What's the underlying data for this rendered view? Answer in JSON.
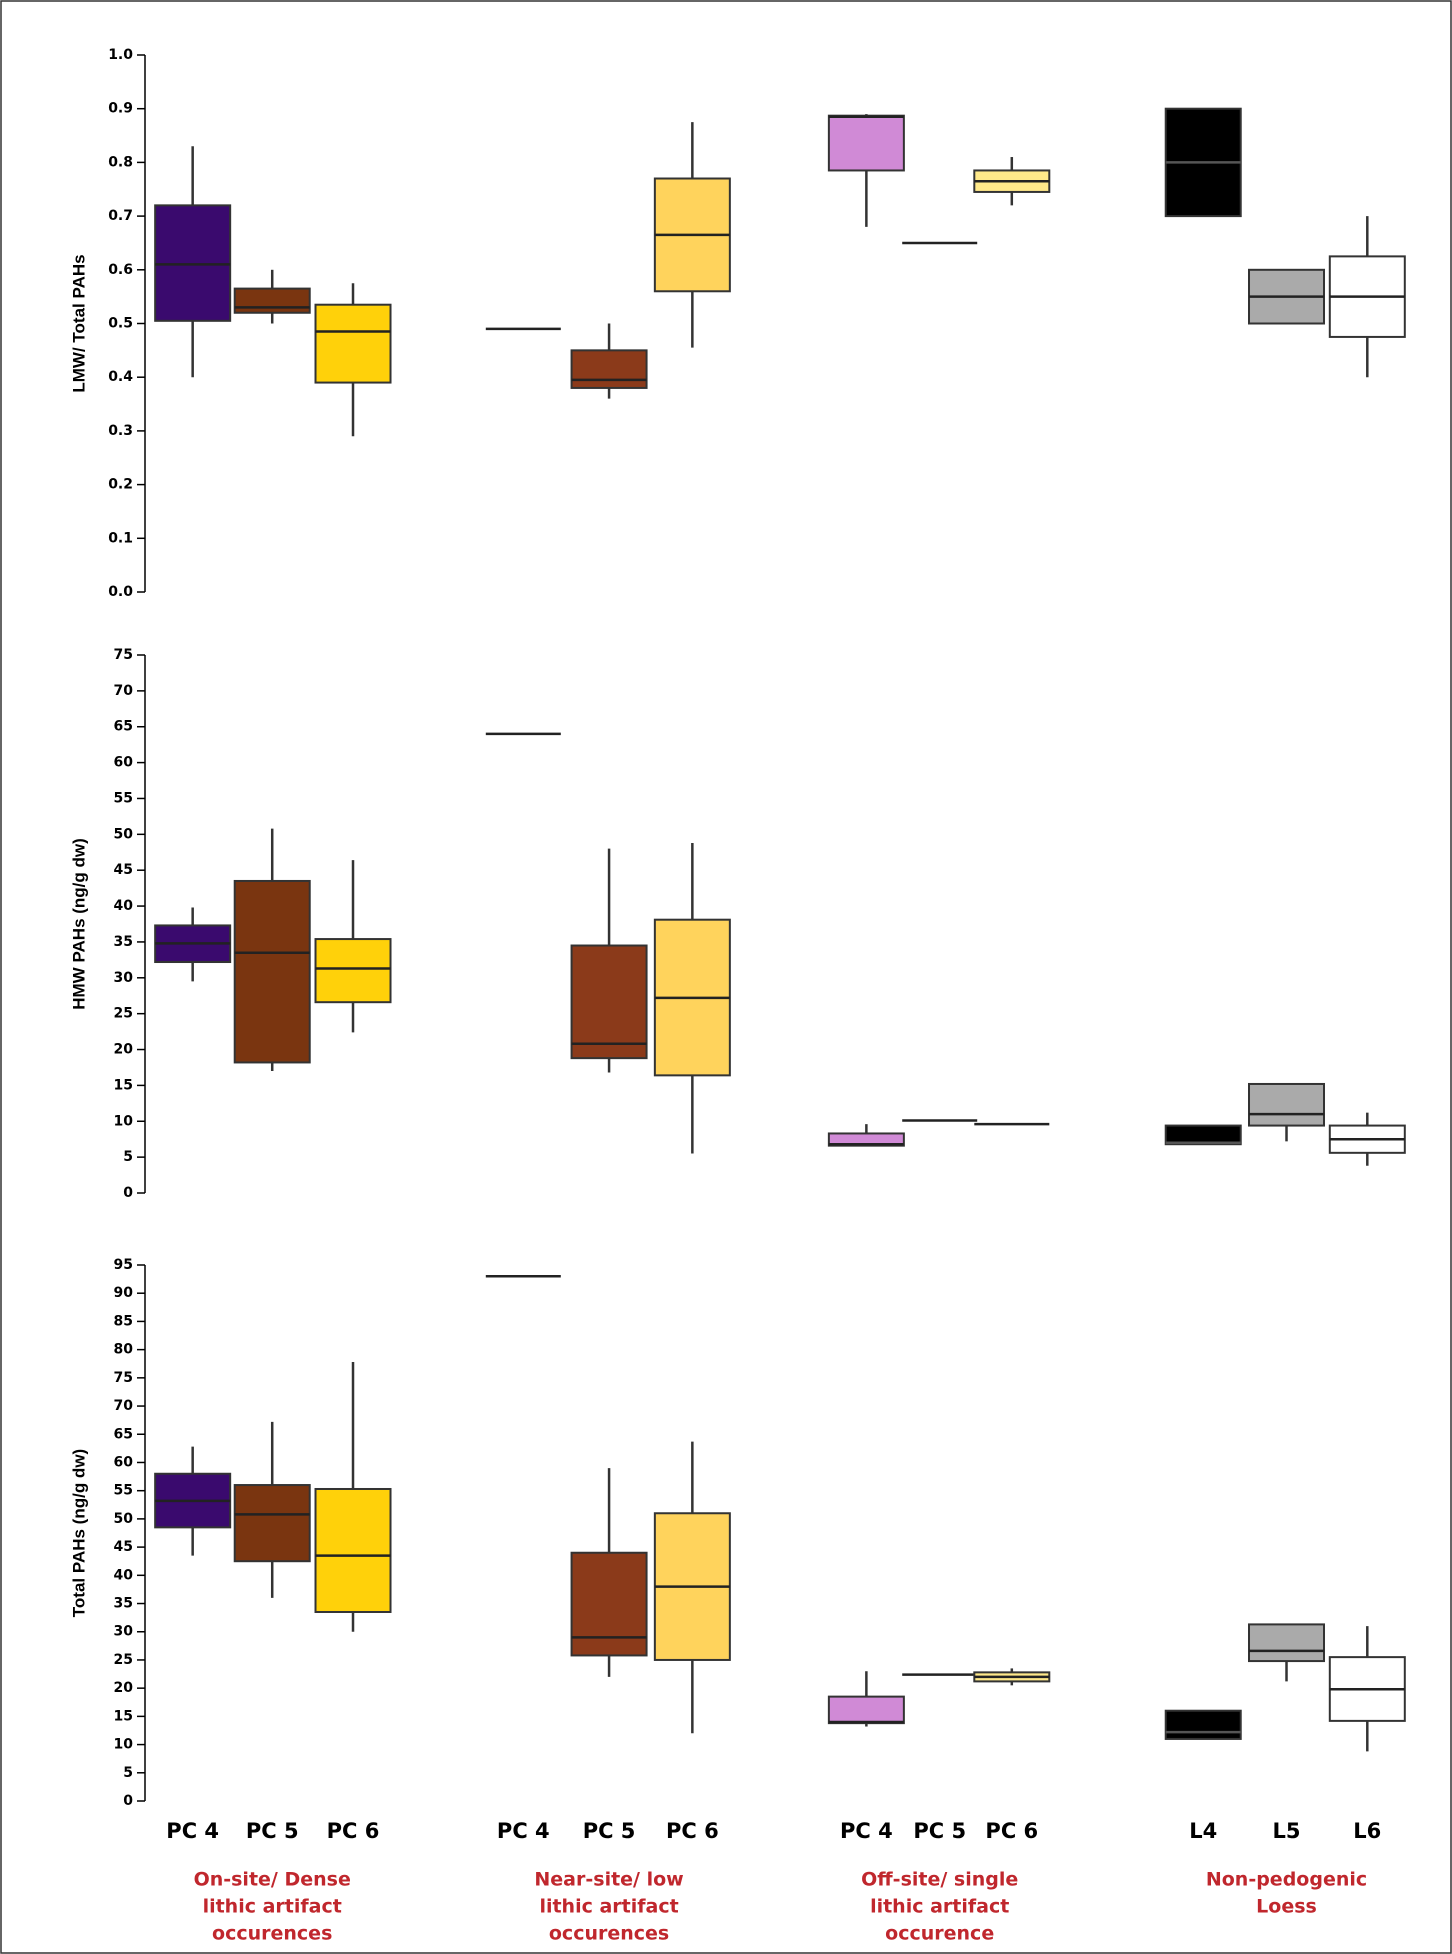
{
  "chart_data": [
    {
      "type": "box",
      "ylabel": "LMW/ Total PAHs",
      "ylim": [
        0,
        1
      ],
      "yticks": [
        {
          "value": 0,
          "label": "0.0"
        },
        0.1,
        0.2,
        0.3,
        0.4,
        0.5,
        0.6,
        0.7,
        0.8,
        0.9,
        {
          "value": 1,
          "label": "1.0"
        }
      ],
      "boxes": [
        {
          "color": "#3a0a6e",
          "min": 0.4,
          "q1": 0.505,
          "median": 0.61,
          "q3": 0.72,
          "max": 0.83
        },
        {
          "color": "#7a3510",
          "min": 0.5,
          "q1": 0.52,
          "median": 0.53,
          "q3": 0.565,
          "max": 0.6
        },
        {
          "color": "#ffd10a",
          "min": 0.29,
          "q1": 0.39,
          "median": 0.485,
          "q3": 0.535,
          "max": 0.575
        },
        {
          "color": "#8b3a1a",
          "median": 0.49
        },
        {
          "color": "#8b3a1a",
          "min": 0.36,
          "q1": 0.38,
          "median": 0.395,
          "q3": 0.45,
          "max": 0.5
        },
        {
          "color": "#ffd35c",
          "min": 0.455,
          "q1": 0.56,
          "median": 0.665,
          "q3": 0.77,
          "max": 0.875
        },
        {
          "color": "#d08ad6",
          "min": 0.68,
          "q1": 0.785,
          "median": 0.885,
          "q3": 0.887,
          "max": 0.89
        },
        {
          "color": "#d08ad6",
          "median": 0.65
        },
        {
          "color": "#ffe98a",
          "min": 0.72,
          "q1": 0.745,
          "median": 0.765,
          "q3": 0.785,
          "max": 0.81
        },
        {
          "color": "#000000",
          "min": 0.7,
          "q1": 0.7,
          "median": 0.8,
          "q3": 0.9,
          "max": 0.9
        },
        {
          "color": "#aaaaaa",
          "min": 0.5,
          "q1": 0.5,
          "median": 0.55,
          "q3": 0.6,
          "max": 0.6
        },
        {
          "color": "#ffffff",
          "min": 0.4,
          "q1": 0.475,
          "median": 0.55,
          "q3": 0.625,
          "max": 0.7
        }
      ]
    },
    {
      "type": "box",
      "ylabel": "HMW PAHs (ng/g dw)",
      "ylim": [
        0,
        75
      ],
      "yticks": [
        0,
        5,
        10,
        15,
        20,
        25,
        30,
        35,
        40,
        45,
        50,
        55,
        60,
        65,
        70,
        75
      ],
      "boxes": [
        {
          "color": "#3a0a6e",
          "min": 29.5,
          "q1": 32.2,
          "median": 34.8,
          "q3": 37.3,
          "max": 39.8
        },
        {
          "color": "#7a3510",
          "min": 17,
          "q1": 18.2,
          "median": 33.5,
          "q3": 43.5,
          "max": 50.8
        },
        {
          "color": "#ffd10a",
          "min": 22.4,
          "q1": 26.6,
          "median": 31.3,
          "q3": 35.4,
          "max": 46.4
        },
        {
          "color": "#8b3a1a",
          "median": 64
        },
        {
          "color": "#8b3a1a",
          "min": 16.8,
          "q1": 18.8,
          "median": 20.8,
          "q3": 34.5,
          "max": 48
        },
        {
          "color": "#ffd35c",
          "min": 5.5,
          "q1": 16.4,
          "median": 27.2,
          "q3": 38.1,
          "max": 48.8
        },
        {
          "color": "#d08ad6",
          "min": 6.6,
          "q1": 6.6,
          "median": 6.8,
          "q3": 8.3,
          "max": 9.6
        },
        {
          "color": "#d08ad6",
          "median": 10.1
        },
        {
          "color": "#ffe98a",
          "median": 9.6
        },
        {
          "color": "#000000",
          "min": 6.8,
          "q1": 6.8,
          "median": 7.0,
          "q3": 9.4,
          "max": 9.4
        },
        {
          "color": "#aaaaaa",
          "min": 7.2,
          "q1": 9.4,
          "median": 11,
          "q3": 15.2,
          "max": 15.2
        },
        {
          "color": "#ffffff",
          "min": 3.8,
          "q1": 5.6,
          "median": 7.5,
          "q3": 9.4,
          "max": 11.2
        }
      ]
    },
    {
      "type": "box",
      "ylabel": "Total PAHs (ng/g dw)",
      "ylim": [
        0,
        95
      ],
      "yticks": [
        0,
        5,
        10,
        15,
        20,
        25,
        30,
        35,
        40,
        45,
        50,
        55,
        60,
        65,
        70,
        75,
        80,
        85,
        90,
        95
      ],
      "categories": [
        "PC 4",
        "PC 5",
        "PC 6",
        "PC 4",
        "PC 5",
        "PC 6",
        "PC 4",
        "PC 5",
        "PC 6",
        "L4",
        "L5",
        "L6"
      ],
      "groups": [
        [
          "On-site/ Dense",
          "lithic artifact",
          "occurences"
        ],
        [
          "Near-site/ low",
          "lithic artifact",
          "occurences"
        ],
        [
          "Off-site/ single",
          "lithic artifact",
          "occurence"
        ],
        [
          "Non-pedogenic",
          "Loess"
        ]
      ],
      "boxes": [
        {
          "color": "#3a0a6e",
          "min": 43.5,
          "q1": 48.5,
          "median": 53.2,
          "q3": 58,
          "max": 62.8
        },
        {
          "color": "#7a3510",
          "min": 36,
          "q1": 42.5,
          "median": 50.8,
          "q3": 56,
          "max": 67.2
        },
        {
          "color": "#ffd10a",
          "min": 30,
          "q1": 33.5,
          "median": 43.5,
          "q3": 55.3,
          "max": 77.8
        },
        {
          "color": "#8b3a1a",
          "median": 93
        },
        {
          "color": "#8b3a1a",
          "min": 22,
          "q1": 25.8,
          "median": 29,
          "q3": 44,
          "max": 59
        },
        {
          "color": "#ffd35c",
          "min": 12,
          "q1": 25,
          "median": 38,
          "q3": 51,
          "max": 63.7
        },
        {
          "color": "#d08ad6",
          "min": 13.2,
          "q1": 13.8,
          "median": 14,
          "q3": 18.5,
          "max": 23
        },
        {
          "color": "#d08ad6",
          "median": 22.4
        },
        {
          "color": "#ffe98a",
          "min": 20.5,
          "q1": 21.2,
          "median": 22,
          "q3": 22.8,
          "max": 23.5
        },
        {
          "color": "#000000",
          "min": 11,
          "q1": 11,
          "median": 12.2,
          "q3": 16,
          "max": 16
        },
        {
          "color": "#aaaaaa",
          "min": 21.2,
          "q1": 24.8,
          "median": 26.6,
          "q3": 31.3,
          "max": 31.3
        },
        {
          "color": "#ffffff",
          "min": 8.8,
          "q1": 14.2,
          "median": 19.8,
          "q3": 25.5,
          "max": 31
        }
      ]
    }
  ]
}
